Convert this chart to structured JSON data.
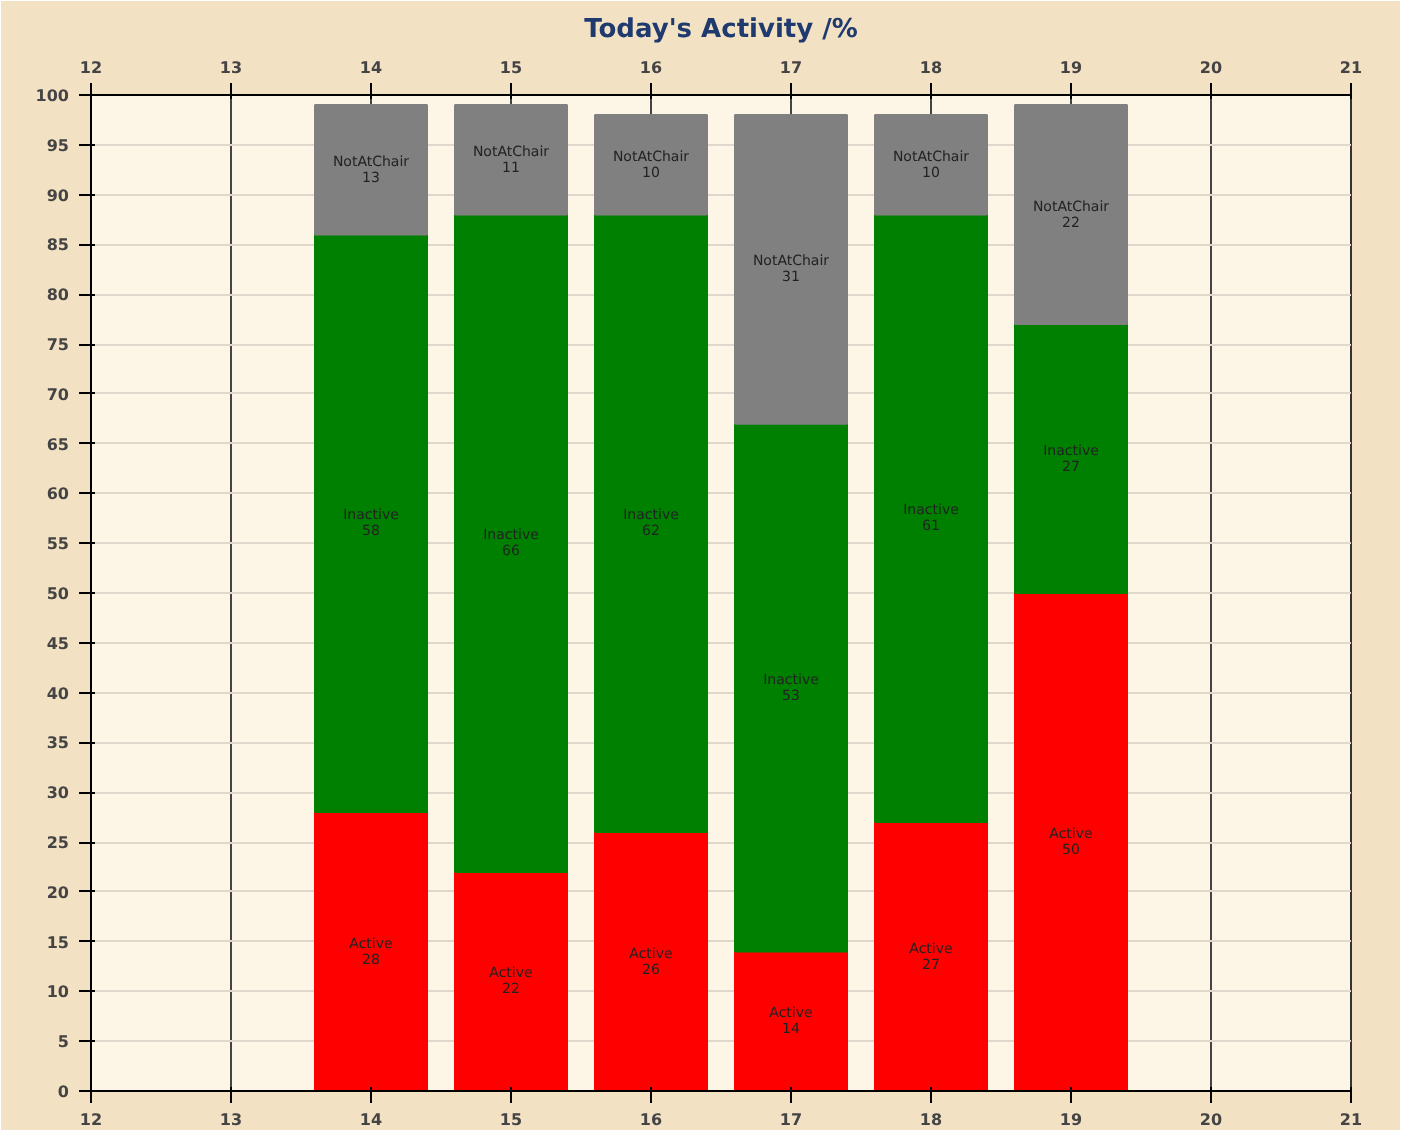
{
  "chart_data": {
    "type": "bar",
    "title": "Today's Activity /%",
    "stacked": true,
    "data_labels": true,
    "x": [
      14,
      15,
      16,
      17,
      18,
      19
    ],
    "series": [
      {
        "name": "Active",
        "color": "#ff0000",
        "values": [
          28,
          22,
          26,
          14,
          27,
          50
        ]
      },
      {
        "name": "Inactive",
        "color": "#008000",
        "values": [
          58,
          66,
          62,
          53,
          61,
          27
        ]
      },
      {
        "name": "NotAtChair",
        "color": "#808080",
        "values": [
          13,
          11,
          10,
          31,
          10,
          22
        ]
      }
    ],
    "xlim": [
      12,
      21
    ],
    "xticks": [
      12,
      13,
      14,
      15,
      16,
      17,
      18,
      19,
      20,
      21
    ],
    "x2lim": [
      12,
      21
    ],
    "x2ticks": [
      12,
      13,
      14,
      15,
      16,
      17,
      18,
      19,
      20,
      21
    ],
    "ylim": [
      0,
      100
    ],
    "yticks": [
      0,
      5,
      10,
      15,
      20,
      25,
      30,
      35,
      40,
      45,
      50,
      55,
      60,
      65,
      70,
      75,
      80,
      85,
      90,
      95,
      100
    ],
    "grid": true
  }
}
